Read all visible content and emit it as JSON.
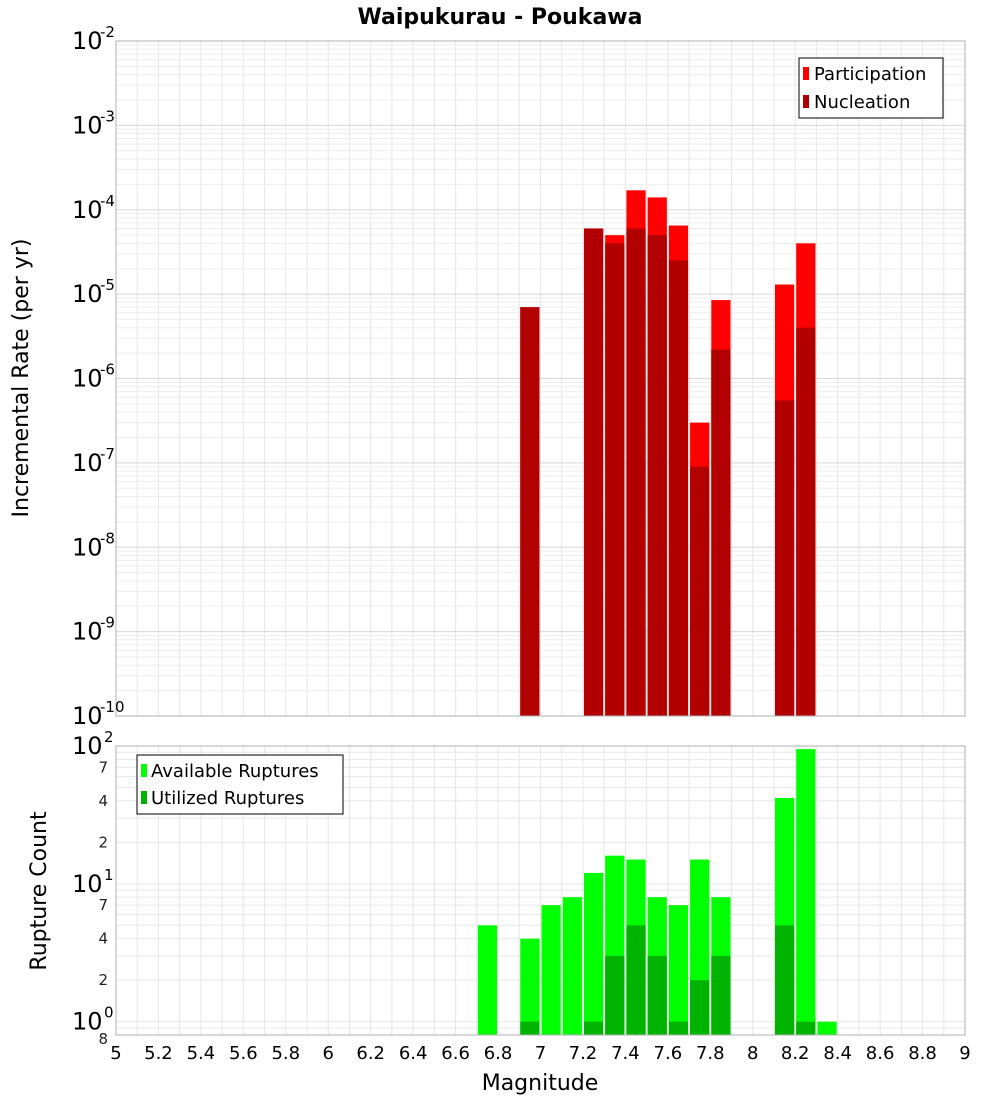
{
  "title": "Waipukurau - Poukawa",
  "colors": {
    "participation": "#ff0000",
    "nucleation": "#b20000",
    "available": "#00ff00",
    "utilized": "#00b300",
    "grid": "#e6e6e6",
    "frame": "#b0b0b0"
  },
  "chart_data": [
    {
      "type": "bar",
      "name": "rate-panel",
      "title": "Waipukurau - Poukawa",
      "ylabel": "Incremental Rate (per yr)",
      "xlabel": "",
      "y_scale": "log",
      "ylim": [
        1e-10,
        0.01
      ],
      "xlim": [
        5,
        9
      ],
      "grid": true,
      "legend_position": "top-right",
      "y_ticks": [
        {
          "base": "10",
          "exp": "-10"
        },
        {
          "base": "10",
          "exp": "-9"
        },
        {
          "base": "10",
          "exp": "-8"
        },
        {
          "base": "10",
          "exp": "-7"
        },
        {
          "base": "10",
          "exp": "-6"
        },
        {
          "base": "10",
          "exp": "-5"
        },
        {
          "base": "10",
          "exp": "-4"
        },
        {
          "base": "10",
          "exp": "-3"
        },
        {
          "base": "10",
          "exp": "-2"
        }
      ],
      "x": [
        6.95,
        7.25,
        7.35,
        7.45,
        7.55,
        7.65,
        7.75,
        7.85,
        8.15,
        8.25
      ],
      "series": [
        {
          "name": "Participation",
          "color": "#ff0000",
          "values": [
            7e-06,
            6e-05,
            5e-05,
            0.00017,
            0.00014,
            6.5e-05,
            3e-07,
            8.5e-06,
            1.3e-05,
            4e-05
          ]
        },
        {
          "name": "Nucleation",
          "color": "#b20000",
          "values": [
            7e-06,
            6e-05,
            4e-05,
            6e-05,
            5e-05,
            2.5e-05,
            9e-08,
            2.2e-06,
            5.5e-07,
            4e-06
          ]
        }
      ]
    },
    {
      "type": "bar",
      "name": "count-panel",
      "ylabel": "Rupture Count",
      "xlabel": "Magnitude",
      "y_scale": "log",
      "ylim": [
        0.8,
        100
      ],
      "xlim": [
        5,
        9
      ],
      "grid": true,
      "legend_position": "top-left",
      "x_ticks": [
        "5",
        "5.2",
        "5.4",
        "5.6",
        "5.8",
        "6",
        "6.2",
        "6.4",
        "6.6",
        "6.8",
        "7",
        "7.2",
        "7.4",
        "7.6",
        "7.8",
        "8",
        "8.2",
        "8.4",
        "8.6",
        "8.8",
        "9"
      ],
      "y_major_ticks": [
        {
          "base": "10",
          "exp": "0",
          "value": 1
        },
        {
          "base": "10",
          "exp": "1",
          "value": 10
        },
        {
          "base": "10",
          "exp": "2",
          "value": 100
        }
      ],
      "y_minor_ticks": [
        {
          "label": "2",
          "value": 2
        },
        {
          "label": "4",
          "value": 4
        },
        {
          "label": "7",
          "value": 7
        },
        {
          "label": "2",
          "value": 20
        },
        {
          "label": "4",
          "value": 40
        },
        {
          "label": "7",
          "value": 70
        }
      ],
      "y_bottom_label": "8",
      "x": [
        6.75,
        6.95,
        7.05,
        7.15,
        7.25,
        7.35,
        7.45,
        7.55,
        7.65,
        7.75,
        7.85,
        8.15,
        8.25,
        8.35
      ],
      "series": [
        {
          "name": "Available Ruptures",
          "color": "#00ff00",
          "values": [
            5,
            4,
            7,
            8,
            12,
            16,
            15,
            8,
            7,
            15,
            8,
            42,
            95,
            1
          ]
        },
        {
          "name": "Utilized Ruptures",
          "color": "#00b300",
          "values": [
            0,
            1,
            0,
            0,
            1,
            3,
            5,
            3,
            1,
            2,
            3,
            5,
            1,
            0
          ]
        }
      ]
    }
  ]
}
